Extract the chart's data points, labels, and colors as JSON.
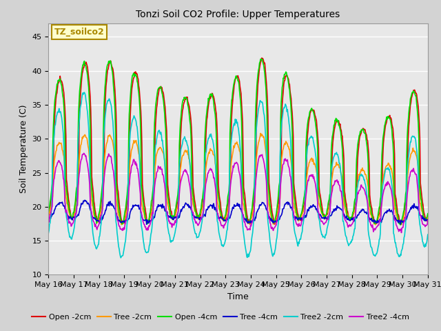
{
  "title": "Tonzi Soil CO2 Profile: Upper Temperatures",
  "xlabel": "Time",
  "ylabel": "Soil Temperature (C)",
  "ylim": [
    10,
    47
  ],
  "yticks": [
    10,
    15,
    20,
    25,
    30,
    35,
    40,
    45
  ],
  "bg_color": "#d3d3d3",
  "plot_bg_color": "#e8e8e8",
  "annotation_text": "TZ_soilco2",
  "annotation_bg": "#ffffcc",
  "annotation_border": "#aa8800",
  "n_days": 15,
  "series": [
    {
      "label": "Open -2cm",
      "color": "#dd0000",
      "lw": 1.2,
      "amp_base": 22,
      "min_base": 18,
      "amp_var": 4.0,
      "min_var": 0.5,
      "phase": 0.0,
      "sharpness": 3.0
    },
    {
      "label": "Tree -2cm",
      "color": "#ff9900",
      "lw": 1.2,
      "amp_base": 12,
      "min_base": 18,
      "amp_var": 2.0,
      "min_var": 0.5,
      "phase": 0.03,
      "sharpness": 2.5
    },
    {
      "label": "Open -4cm",
      "color": "#00dd00",
      "lw": 1.2,
      "amp_base": 22,
      "min_base": 18,
      "amp_var": 4.0,
      "min_var": 0.5,
      "phase": 0.04,
      "sharpness": 3.0
    },
    {
      "label": "Tree -4cm",
      "color": "#0000cc",
      "lw": 1.2,
      "amp_base": 2.5,
      "min_base": 18,
      "amp_var": 0.5,
      "min_var": 0.3,
      "phase": 0.0,
      "sharpness": 1.5
    },
    {
      "label": "Tree2 -2cm",
      "color": "#00cccc",
      "lw": 1.2,
      "amp_base": 20,
      "min_base": 14,
      "amp_var": 5.0,
      "min_var": 1.5,
      "phase": 0.06,
      "sharpness": 2.8
    },
    {
      "label": "Tree2 -4cm",
      "color": "#cc00cc",
      "lw": 1.2,
      "amp_base": 10,
      "min_base": 17,
      "amp_var": 2.0,
      "min_var": 0.5,
      "phase": 0.05,
      "sharpness": 2.0
    }
  ],
  "xtick_labels": [
    "May 16",
    "May 17",
    "May 18",
    "May 19",
    "May 20",
    "May 21",
    "May 22",
    "May 23",
    "May 24",
    "May 25",
    "May 26",
    "May 27",
    "May 28",
    "May 29",
    "May 30",
    "May 31"
  ],
  "amp_envelope_days": [
    0,
    1,
    2,
    3,
    4,
    5,
    6,
    7,
    8,
    9,
    10,
    11,
    12,
    13,
    14,
    15
  ],
  "amp_scale": [
    0.85,
    0.85,
    0.9,
    0.95,
    1.0,
    1.0,
    0.95,
    0.95,
    0.95,
    0.95,
    0.6,
    0.7,
    0.75,
    0.85,
    0.9,
    0.9
  ]
}
